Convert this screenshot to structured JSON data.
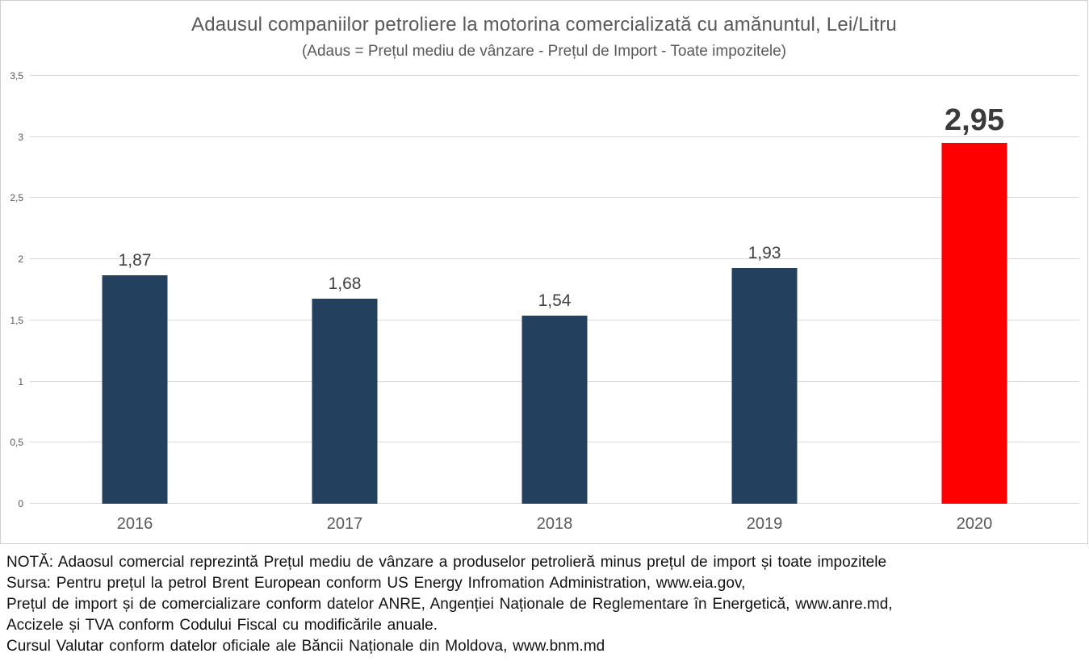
{
  "chart_data": {
    "type": "bar",
    "title": "Adausul companiilor petroliere la motorina comercializată cu amănuntul, Lei/Litru",
    "subtitle": "(Adaus = Prețul mediu de vânzare - Prețul de Import - Toate impozitele)",
    "categories": [
      "2016",
      "2017",
      "2018",
      "2019",
      "2020"
    ],
    "values": [
      1.87,
      1.68,
      1.54,
      1.93,
      2.95
    ],
    "value_labels": [
      "1,87",
      "1,68",
      "1,54",
      "1,93",
      "2,95"
    ],
    "bar_colors": [
      "#24405f",
      "#24405f",
      "#24405f",
      "#24405f",
      "#ff0000"
    ],
    "highlight_index": 4,
    "xlabel": "",
    "ylabel": "",
    "unit": "Lei/Litru",
    "ylim": [
      0,
      3.5
    ],
    "yticks": [
      0,
      0.5,
      1,
      1.5,
      2,
      2.5,
      3,
      3.5
    ],
    "ytick_labels": [
      "0",
      "0,5",
      "1",
      "1,5",
      "2",
      "2,5",
      "3",
      "3,5"
    ],
    "grid": true,
    "legend": false
  },
  "notes": {
    "lines": [
      "NOTĂ: Adaosul comercial reprezintă Prețul mediu de vânzare a produselor petrolieră minus prețul de import și toate impozitele",
      "Sursa: Pentru prețul la petrol Brent European conform US Energy Infromation Administration, www.eia.gov,",
      "Prețul de import și de comercializare conform datelor ANRE, Angenției Naționale de Reglementare în Energetică, www.anre.md,",
      "Accizele și TVA conform Codului Fiscal cu modificările anuale.",
      "Cursul Valutar conform datelor oficiale ale Băncii Naționale din Moldova, www.bnm.md"
    ]
  },
  "colors": {
    "bar_default": "#24405f",
    "bar_highlight": "#ff0000",
    "gridline": "#d9d9d9",
    "chart_border": "#cfcfcf",
    "title_text": "#595959",
    "axis_text": "#595959",
    "data_label": "#404040",
    "note_text": "#121212"
  }
}
